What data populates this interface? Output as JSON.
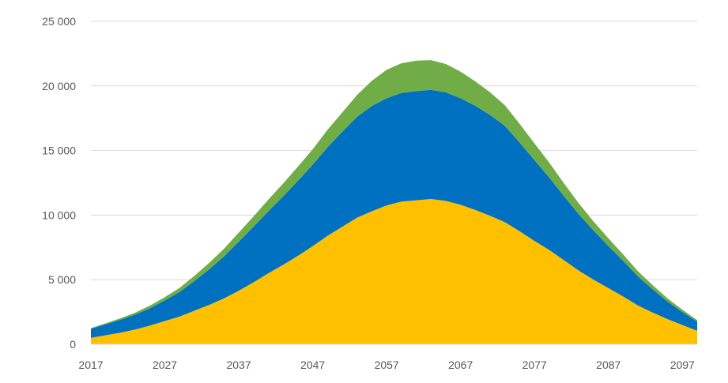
{
  "chart_data": {
    "type": "area",
    "stacked": true,
    "title": "",
    "xlabel": "",
    "ylabel": "",
    "x": [
      2017,
      2019,
      2021,
      2023,
      2025,
      2027,
      2029,
      2031,
      2033,
      2035,
      2037,
      2039,
      2041,
      2043,
      2045,
      2047,
      2049,
      2051,
      2053,
      2055,
      2057,
      2059,
      2061,
      2063,
      2065,
      2067,
      2069,
      2071,
      2073,
      2075,
      2077,
      2079,
      2081,
      2083,
      2085,
      2087,
      2089,
      2091,
      2093,
      2095,
      2097,
      2099
    ],
    "xlim": [
      2017,
      2099
    ],
    "ylim": [
      0,
      25000
    ],
    "yticks": [
      0,
      5000,
      10000,
      15000,
      20000,
      25000
    ],
    "ytick_labels": [
      "0",
      "5 000",
      "10 000",
      "15 000",
      "20 000",
      "25 000"
    ],
    "xticks": [
      2017,
      2027,
      2037,
      2047,
      2057,
      2067,
      2077,
      2087,
      2097
    ],
    "xtick_labels": [
      "2017",
      "2027",
      "2037",
      "2047",
      "2057",
      "2067",
      "2077",
      "2087",
      "2097"
    ],
    "grid": "horizontal",
    "legend": "none",
    "series": [
      {
        "color": "#ffc000",
        "values": [
          500,
          700,
          900,
          1150,
          1450,
          1800,
          2150,
          2600,
          3050,
          3550,
          4150,
          4800,
          5500,
          6150,
          6850,
          7600,
          8400,
          9100,
          9800,
          10300,
          10750,
          11050,
          11150,
          11250,
          11100,
          10800,
          10400,
          9950,
          9450,
          8750,
          8000,
          7300,
          6500,
          5700,
          5000,
          4350,
          3700,
          3000,
          2450,
          1950,
          1500,
          1050
        ]
      },
      {
        "color": "#0070c0",
        "values": [
          700,
          850,
          1000,
          1150,
          1350,
          1600,
          1900,
          2300,
          2750,
          3250,
          3800,
          4300,
          4800,
          5300,
          5800,
          6300,
          6850,
          7350,
          7800,
          8150,
          8300,
          8400,
          8450,
          8450,
          8400,
          8250,
          8050,
          7800,
          7450,
          6850,
          6250,
          5600,
          4950,
          4350,
          3800,
          3250,
          2750,
          2250,
          1800,
          1350,
          1000,
          700
        ]
      },
      {
        "color": "#70ad47",
        "values": [
          50,
          80,
          120,
          150,
          200,
          250,
          320,
          400,
          500,
          600,
          700,
          800,
          900,
          1000,
          1100,
          1200,
          1350,
          1500,
          1700,
          1950,
          2200,
          2300,
          2350,
          2300,
          2200,
          2050,
          1900,
          1750,
          1600,
          1450,
          1300,
          1150,
          1000,
          850,
          700,
          600,
          500,
          400,
          320,
          250,
          180,
          120
        ]
      }
    ]
  }
}
